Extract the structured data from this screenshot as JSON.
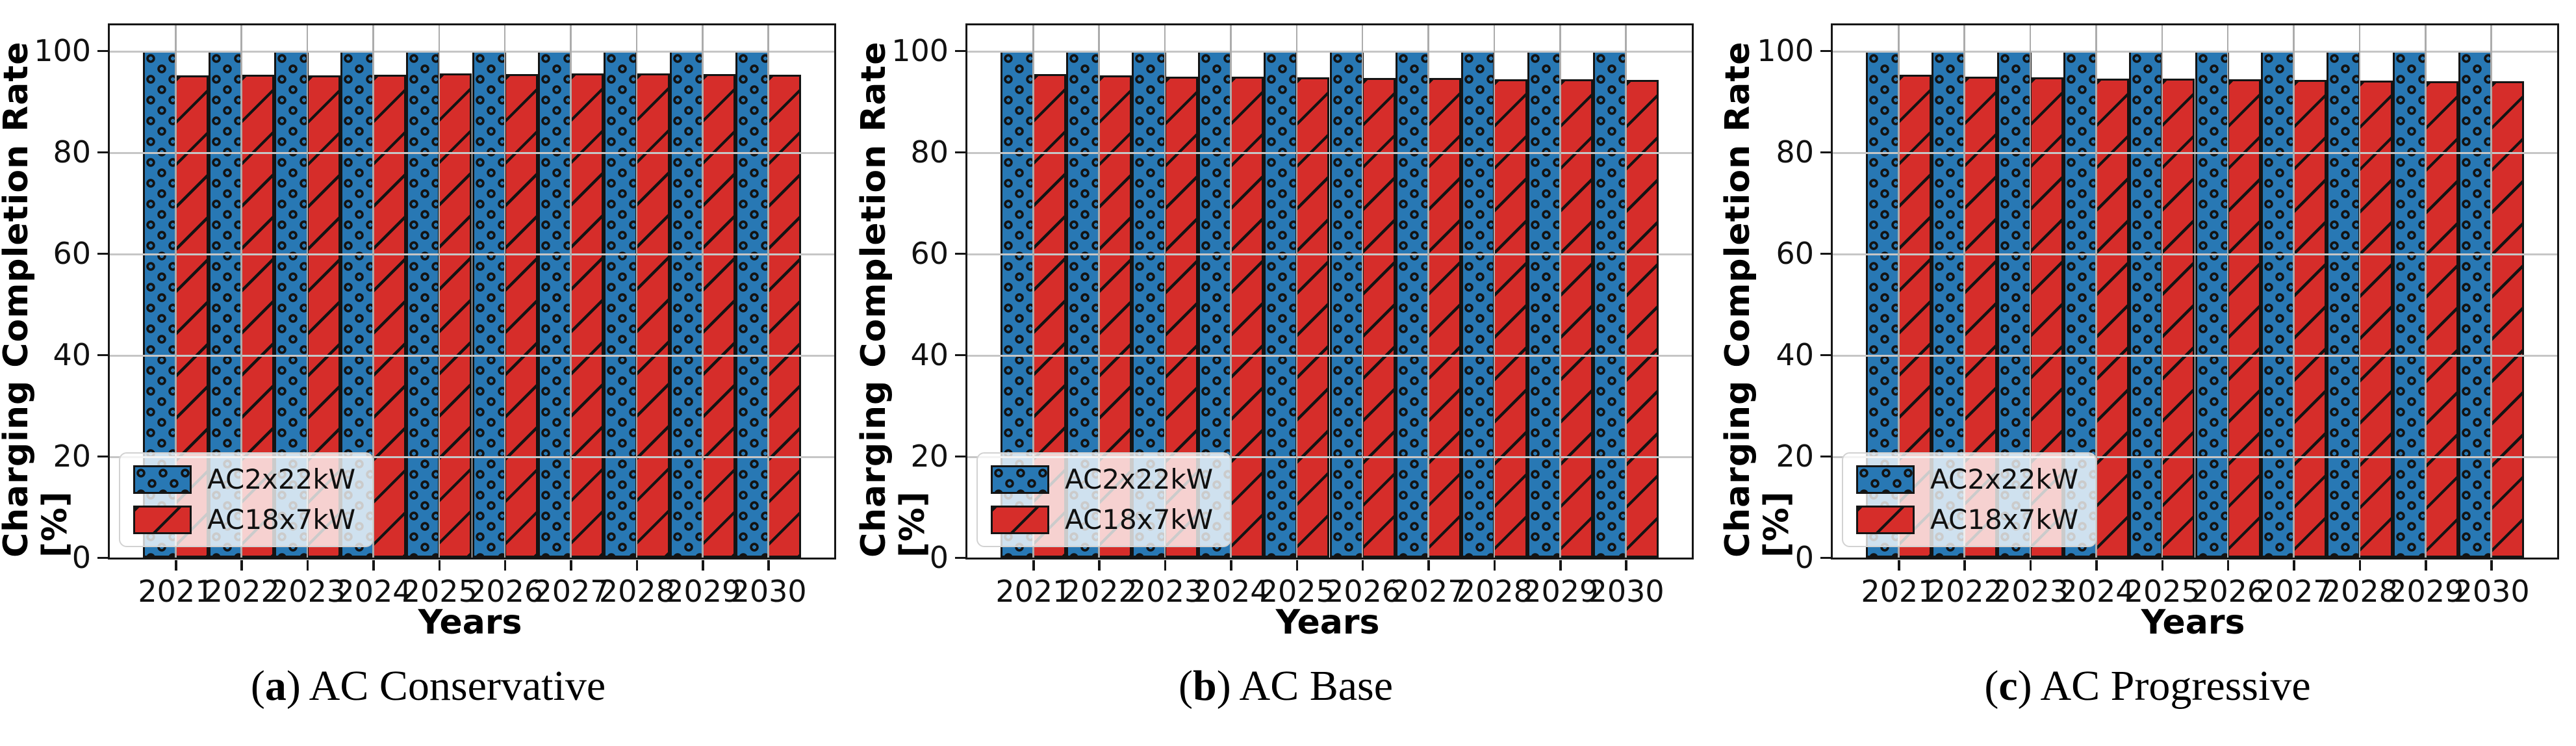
{
  "figure": {
    "ylabel": "Charging Completion Rate [%]",
    "xlabel": "Years",
    "colors": {
      "blue": "#2878B4",
      "red": "#D62D2A",
      "edge": "#141414",
      "grid_h": "#C6C6C6",
      "grid_v": "#ACACAC"
    },
    "panels": [
      {
        "caption_open": "(",
        "caption_letter": "a",
        "caption_close": ")",
        "caption_text": " AC Conservative"
      },
      {
        "caption_open": "(",
        "caption_letter": "b",
        "caption_close": ")",
        "caption_text": " AC Base"
      },
      {
        "caption_open": "(",
        "caption_letter": "c",
        "caption_close": ")",
        "caption_text": " AC Progressive"
      }
    ]
  },
  "chart_data": [
    {
      "type": "bar",
      "title": "(a) AC Conservative",
      "xlabel": "Years",
      "ylabel": "Charging Completion Rate [%]",
      "categories": [
        "2021",
        "2022",
        "2023",
        "2024",
        "2025",
        "2026",
        "2027",
        "2028",
        "2029",
        "2030"
      ],
      "series": [
        {
          "name": "AC2x22kW",
          "color": "#2878B4",
          "hatch": "o",
          "values": [
            100,
            100,
            100,
            100,
            100,
            100,
            100,
            100,
            100,
            100
          ]
        },
        {
          "name": "AC18x7kW",
          "color": "#D62D2A",
          "hatch": "/",
          "values": [
            95.1,
            95.2,
            95.1,
            95.3,
            95.5,
            95.4,
            95.5,
            95.5,
            95.4,
            95.2
          ]
        }
      ],
      "ylim": [
        0,
        105
      ],
      "yticks": [
        0,
        20,
        40,
        60,
        80,
        100
      ],
      "grid": true,
      "legend_position": "lower left"
    },
    {
      "type": "bar",
      "title": "(b) AC Base",
      "xlabel": "Years",
      "ylabel": "Charging Completion Rate [%]",
      "categories": [
        "2021",
        "2022",
        "2023",
        "2024",
        "2025",
        "2026",
        "2027",
        "2028",
        "2029",
        "2030"
      ],
      "series": [
        {
          "name": "AC2x22kW",
          "color": "#2878B4",
          "hatch": "o",
          "values": [
            100,
            100,
            100,
            100,
            100,
            100,
            100,
            100,
            100,
            100
          ]
        },
        {
          "name": "AC18x7kW",
          "color": "#D62D2A",
          "hatch": "/",
          "values": [
            95.4,
            95.1,
            94.9,
            94.9,
            94.8,
            94.6,
            94.6,
            94.4,
            94.3,
            94.2
          ]
        }
      ],
      "ylim": [
        0,
        105
      ],
      "yticks": [
        0,
        20,
        40,
        60,
        80,
        100
      ],
      "grid": true,
      "legend_position": "lower left"
    },
    {
      "type": "bar",
      "title": "(c) AC Progressive",
      "xlabel": "Years",
      "ylabel": "Charging Completion Rate [%]",
      "categories": [
        "2021",
        "2022",
        "2023",
        "2024",
        "2025",
        "2026",
        "2027",
        "2028",
        "2029",
        "2030"
      ],
      "series": [
        {
          "name": "AC2x22kW",
          "color": "#2878B4",
          "hatch": "o",
          "values": [
            100,
            100,
            100,
            100,
            100,
            100,
            100,
            100,
            100,
            100
          ]
        },
        {
          "name": "AC18x7kW",
          "color": "#D62D2A",
          "hatch": "/",
          "values": [
            95.3,
            94.9,
            94.8,
            94.5,
            94.5,
            94.3,
            94.2,
            94.1,
            94.0,
            94.0
          ]
        }
      ],
      "ylim": [
        0,
        105
      ],
      "yticks": [
        0,
        20,
        40,
        60,
        80,
        100
      ],
      "grid": true,
      "legend_position": "lower left"
    }
  ]
}
